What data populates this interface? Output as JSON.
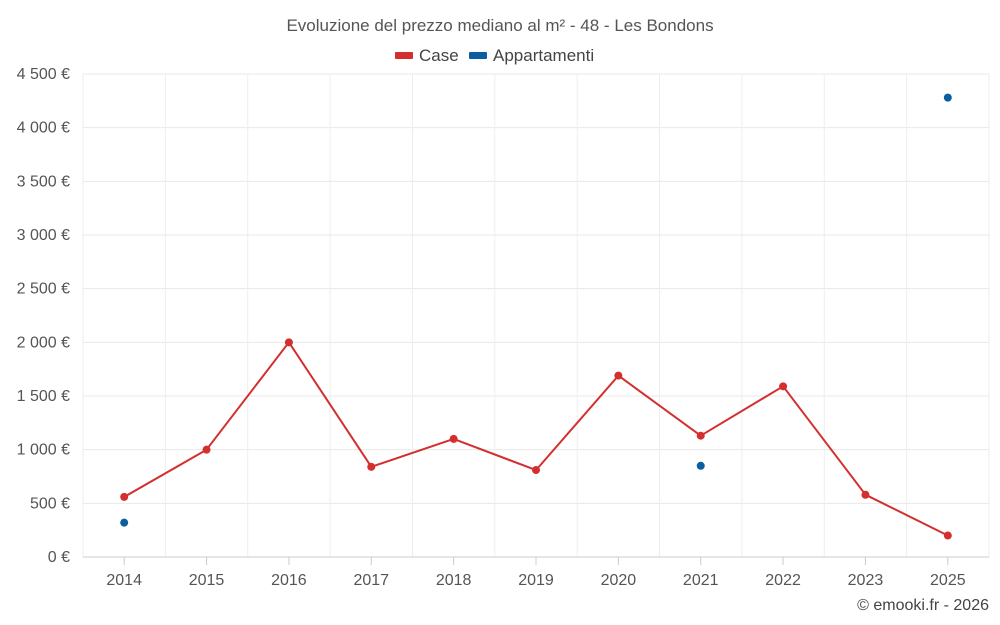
{
  "chart_data": {
    "type": "line",
    "title": "Evoluzione del prezzo mediano al m² - 48 - Les Bondons",
    "xlabel": "",
    "ylabel": "",
    "categories": [
      "2014",
      "2015",
      "2016",
      "2017",
      "2018",
      "2019",
      "2020",
      "2021",
      "2022",
      "2023",
      "2025"
    ],
    "ylim": [
      0,
      4500
    ],
    "yticks": [
      0,
      500,
      1000,
      1500,
      2000,
      2500,
      3000,
      3500,
      4000,
      4500
    ],
    "ytick_labels": [
      "0 €",
      "500 €",
      "1 000 €",
      "1 500 €",
      "2 000 €",
      "2 500 €",
      "3 000 €",
      "3 500 €",
      "4 000 €",
      "4 500 €"
    ],
    "grid": true,
    "legend_position": "top-center",
    "series": [
      {
        "name": "Case",
        "color": "#d32f2f",
        "style": "line-with-markers",
        "values": [
          560,
          1000,
          2000,
          840,
          1100,
          810,
          1690,
          1130,
          1590,
          580,
          200
        ]
      },
      {
        "name": "Appartamenti",
        "color": "#0a5f9e",
        "style": "markers-only",
        "values": [
          320,
          null,
          null,
          null,
          null,
          null,
          null,
          850,
          null,
          null,
          4280
        ]
      }
    ],
    "credit": "© emooki.fr - 2026"
  }
}
